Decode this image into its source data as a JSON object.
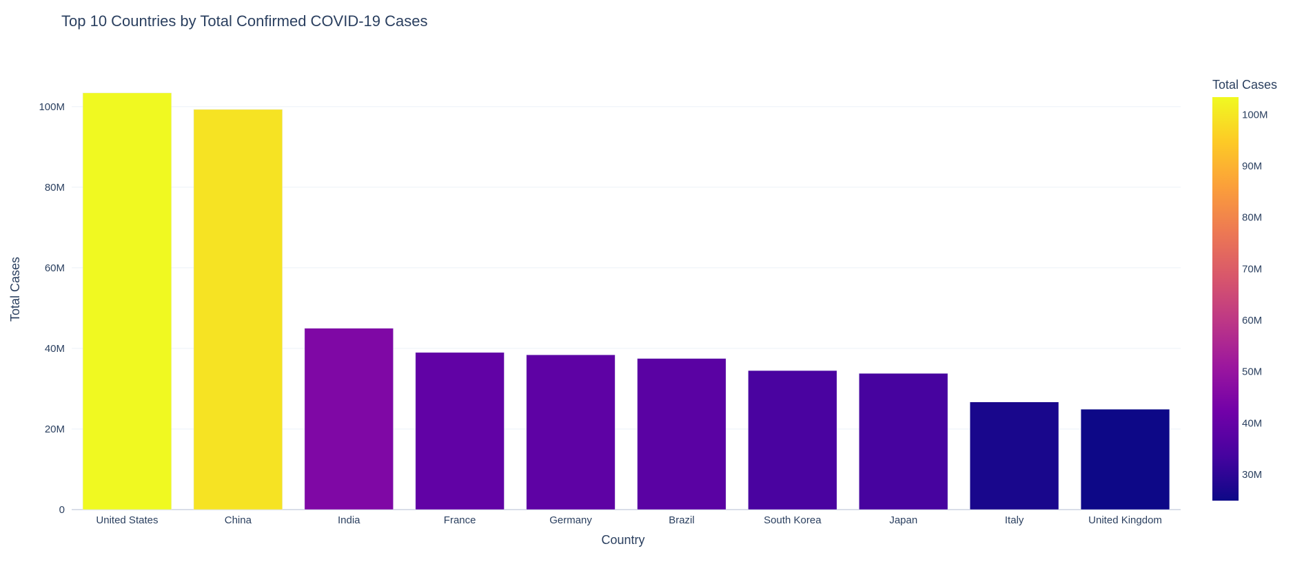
{
  "chart_data": {
    "type": "bar",
    "title": "Top 10 Countries by Total Confirmed COVID-19 Cases",
    "xlabel": "Country",
    "ylabel": "Total Cases",
    "categories": [
      "United States",
      "China",
      "India",
      "France",
      "Germany",
      "Brazil",
      "South Korea",
      "Japan",
      "Italy",
      "United Kingdom"
    ],
    "values": [
      103400000,
      99300000,
      45000000,
      39000000,
      38400000,
      37500000,
      34500000,
      33800000,
      26700000,
      24900000
    ],
    "ylim": [
      0,
      108000000
    ],
    "yticks": [
      0,
      20000000,
      40000000,
      60000000,
      80000000,
      100000000
    ],
    "ytick_labels": [
      "0",
      "20M",
      "40M",
      "60M",
      "80M",
      "100M"
    ],
    "grid": true,
    "legend": "none",
    "colorbar": {
      "title": "Total Cases",
      "range": [
        24900000,
        103400000
      ],
      "ticks": [
        30000000,
        40000000,
        50000000,
        60000000,
        70000000,
        80000000,
        90000000,
        100000000
      ],
      "tick_labels": [
        "30M",
        "40M",
        "50M",
        "60M",
        "70M",
        "80M",
        "90M",
        "100M"
      ],
      "colorscale": "Plasma",
      "placement": "right"
    }
  },
  "colors": {
    "text": "#2a3f5f",
    "grid": "#ebf0f8",
    "axis_zero": "#d9dee8",
    "plasma": [
      "#0d0887",
      "#46039f",
      "#7201a8",
      "#9c179e",
      "#bd3786",
      "#d8576b",
      "#ed7953",
      "#fb9f3a",
      "#fdca26",
      "#f0f921"
    ]
  }
}
